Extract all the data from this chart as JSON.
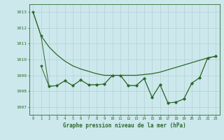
{
  "x": [
    0,
    1,
    2,
    3,
    4,
    5,
    6,
    7,
    8,
    9,
    10,
    11,
    12,
    13,
    14,
    15,
    16,
    17,
    18,
    19,
    20,
    21,
    22,
    23
  ],
  "smooth1": [
    1013.0,
    1011.5,
    1010.8,
    1010.3,
    1009.9,
    1009.6,
    1009.4,
    1009.25,
    1009.1,
    1009.0,
    1009.0,
    1009.0,
    1009.0,
    1009.0,
    1009.05,
    1009.1,
    1009.2,
    1009.35,
    1009.5,
    1009.65,
    1009.8,
    1009.95,
    1010.1,
    1010.2
  ],
  "jagged1": [
    null,
    1009.6,
    1008.3,
    1008.35,
    1008.65,
    1008.35,
    1008.7,
    1008.4,
    1008.4,
    1008.45,
    1009.0,
    1009.0,
    1008.35,
    1008.35,
    1008.8,
    1007.6,
    1008.4,
    1007.25,
    1007.3,
    1007.5,
    1008.5,
    1008.85,
    1010.1,
    1010.2
  ],
  "jagged2": [
    1013.0,
    1011.5,
    1008.3,
    1008.35,
    1008.65,
    1008.35,
    1008.7,
    1008.4,
    1008.4,
    1008.45,
    1009.0,
    1009.0,
    1008.35,
    1008.35,
    1008.8,
    1007.6,
    1008.4,
    1007.25,
    1007.3,
    1007.5,
    1008.5,
    1008.85,
    1010.1,
    1010.2
  ],
  "line_color": "#2d6a2d",
  "bg_color": "#cce8ec",
  "grid_color": "#aacccc",
  "text_color": "#2d6a2d",
  "xlabel": "Graphe pression niveau de la mer (hPa)",
  "ylim": [
    1006.5,
    1013.5
  ],
  "yticks": [
    1007,
    1008,
    1009,
    1010,
    1011,
    1012,
    1013
  ],
  "xticks": [
    0,
    1,
    2,
    3,
    4,
    5,
    6,
    7,
    8,
    9,
    10,
    11,
    12,
    13,
    14,
    15,
    16,
    17,
    18,
    19,
    20,
    21,
    22,
    23
  ]
}
